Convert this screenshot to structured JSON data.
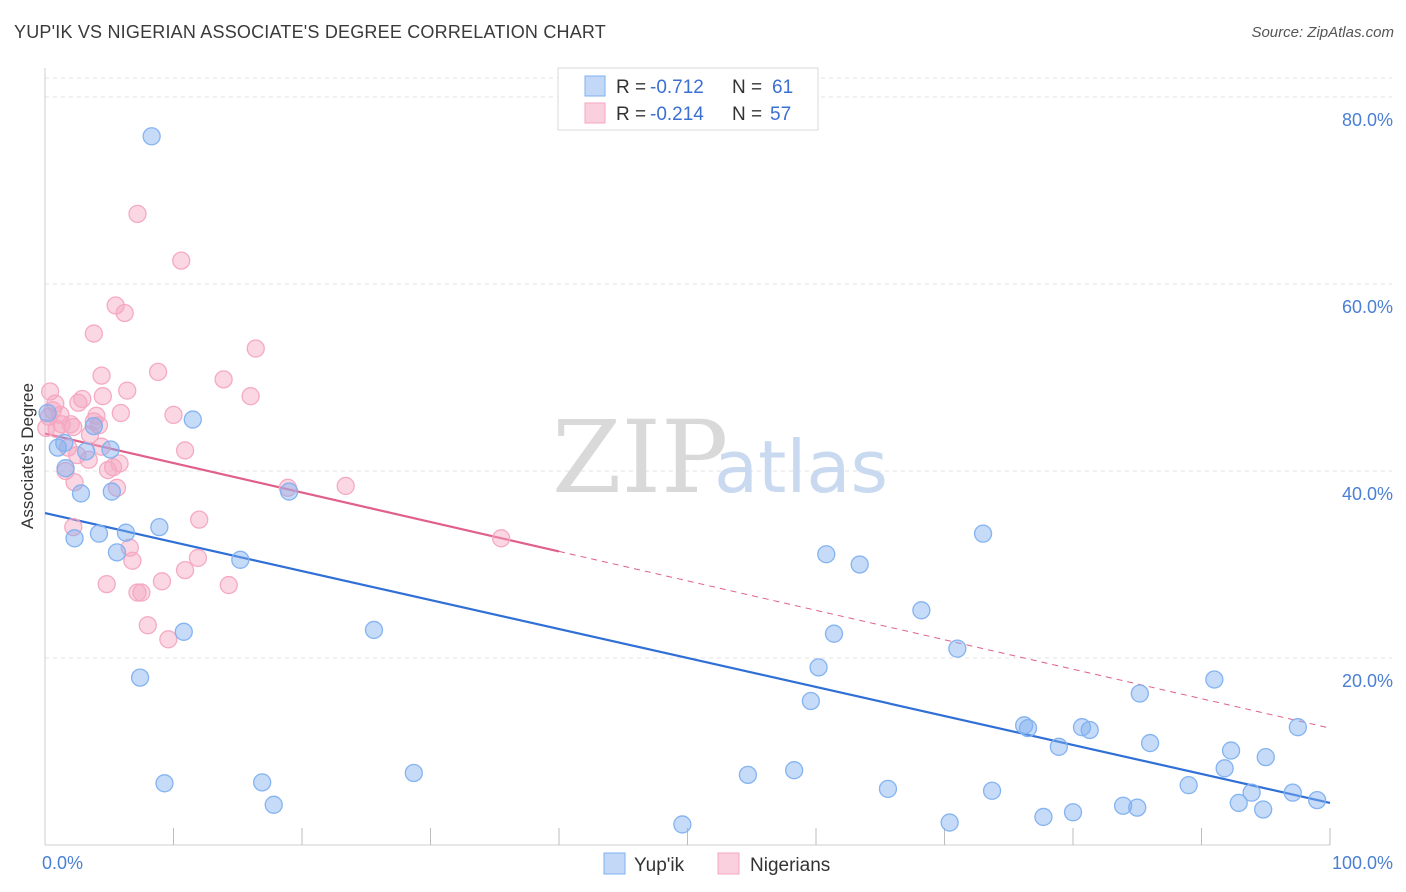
{
  "title": "YUP'IK VS NIGERIAN ASSOCIATE'S DEGREE CORRELATION CHART",
  "source": "Source: ZipAtlas.com",
  "watermark": {
    "zip": "ZIP",
    "atlas": "atlas"
  },
  "legend": {
    "rows": [
      {
        "r_label": "R =",
        "r_value": "-0.712",
        "n_label": "N =",
        "n_value": "61"
      },
      {
        "r_label": "R =",
        "r_value": "-0.214",
        "n_label": "N =",
        "n_value": "57"
      }
    ]
  },
  "bottom_legend": [
    "Yup'ik",
    "Nigerians"
  ],
  "chart_data": {
    "type": "scatter",
    "title": "YUP'IK VS NIGERIAN ASSOCIATE'S DEGREE CORRELATION CHART",
    "xlabel": "",
    "ylabel": "Associate's Degree",
    "xlim": [
      0,
      100
    ],
    "ylim": [
      0,
      82
    ],
    "x_tick_labels": [
      "0.0%",
      "100.0%"
    ],
    "y_ticks": [
      20,
      40,
      60,
      80
    ],
    "y_tick_labels": [
      "20.0%",
      "40.0%",
      "60.0%",
      "80.0%"
    ],
    "grid": true,
    "legend_position": "top-center",
    "series": [
      {
        "name": "Yup'ik",
        "color": "#7fb0f0",
        "line_color": "#2f6fd6",
        "r": -0.712,
        "n": 61,
        "trend": {
          "x0": 0,
          "y0": 35.5,
          "x1": 100,
          "y1": 4.5,
          "dash_from": null
        },
        "points": [
          [
            8.3,
            75.8
          ],
          [
            0.2,
            46.2
          ],
          [
            1.5,
            43.0
          ],
          [
            3.8,
            44.8
          ],
          [
            11.5,
            45.5
          ],
          [
            5.1,
            42.3
          ],
          [
            3.2,
            42.1
          ],
          [
            1.6,
            40.3
          ],
          [
            2.8,
            37.6
          ],
          [
            5.2,
            37.8
          ],
          [
            19.0,
            37.8
          ],
          [
            2.3,
            32.8
          ],
          [
            4.2,
            33.3
          ],
          [
            6.3,
            33.4
          ],
          [
            8.9,
            34.0
          ],
          [
            5.6,
            31.3
          ],
          [
            15.2,
            30.5
          ],
          [
            10.8,
            22.8
          ],
          [
            25.6,
            23.0
          ],
          [
            7.4,
            17.9
          ],
          [
            9.3,
            6.6
          ],
          [
            16.9,
            6.7
          ],
          [
            17.8,
            4.3
          ],
          [
            28.7,
            7.7
          ],
          [
            60.8,
            31.1
          ],
          [
            63.4,
            30.0
          ],
          [
            73.0,
            33.3
          ],
          [
            68.2,
            25.1
          ],
          [
            61.4,
            22.6
          ],
          [
            71.0,
            21.0
          ],
          [
            60.2,
            19.0
          ],
          [
            59.6,
            15.4
          ],
          [
            54.7,
            7.5
          ],
          [
            58.3,
            8.0
          ],
          [
            49.6,
            2.2
          ],
          [
            65.6,
            6.0
          ],
          [
            70.4,
            2.4
          ],
          [
            73.7,
            5.8
          ],
          [
            76.2,
            12.8
          ],
          [
            77.7,
            3.0
          ],
          [
            78.9,
            10.5
          ],
          [
            80.7,
            12.6
          ],
          [
            81.3,
            12.3
          ],
          [
            83.9,
            4.2
          ],
          [
            85.2,
            16.2
          ],
          [
            86.0,
            10.9
          ],
          [
            89.0,
            6.4
          ],
          [
            91.0,
            17.7
          ],
          [
            92.3,
            10.1
          ],
          [
            92.9,
            4.5
          ],
          [
            91.8,
            8.2
          ],
          [
            93.9,
            5.6
          ],
          [
            94.8,
            3.8
          ],
          [
            95.0,
            9.4
          ],
          [
            97.1,
            5.6
          ],
          [
            97.5,
            12.6
          ],
          [
            99.0,
            4.8
          ],
          [
            76.5,
            12.5
          ],
          [
            85.0,
            4.0
          ],
          [
            80.0,
            3.5
          ],
          [
            1.0,
            42.5
          ]
        ]
      },
      {
        "name": "Nigerians",
        "color": "#f4a6c0",
        "line_color": "#e0608a",
        "r": -0.214,
        "n": 57,
        "trend": {
          "x0": 0,
          "y0": 44.0,
          "x1": 100,
          "y1": 12.5,
          "dash_from": 40.0
        },
        "points": [
          [
            7.2,
            67.5
          ],
          [
            10.6,
            62.5
          ],
          [
            5.5,
            57.7
          ],
          [
            6.2,
            56.9
          ],
          [
            3.8,
            54.7
          ],
          [
            16.4,
            53.1
          ],
          [
            4.4,
            50.2
          ],
          [
            8.8,
            50.6
          ],
          [
            13.9,
            49.8
          ],
          [
            0.4,
            48.5
          ],
          [
            6.4,
            48.6
          ],
          [
            4.5,
            48.0
          ],
          [
            16.0,
            48.0
          ],
          [
            2.9,
            47.7
          ],
          [
            2.6,
            47.3
          ],
          [
            0.6,
            46.5
          ],
          [
            1.2,
            46.0
          ],
          [
            10.0,
            46.0
          ],
          [
            5.9,
            46.2
          ],
          [
            0.3,
            45.8
          ],
          [
            1.3,
            45.0
          ],
          [
            0.9,
            44.5
          ],
          [
            0.1,
            44.6
          ],
          [
            2.2,
            44.7
          ],
          [
            3.8,
            45.3
          ],
          [
            4.0,
            45.9
          ],
          [
            4.2,
            44.9
          ],
          [
            3.5,
            43.9
          ],
          [
            1.8,
            42.5
          ],
          [
            2.5,
            41.7
          ],
          [
            4.4,
            42.6
          ],
          [
            10.9,
            42.2
          ],
          [
            3.4,
            41.2
          ],
          [
            5.8,
            40.8
          ],
          [
            5.3,
            40.4
          ],
          [
            4.9,
            40.1
          ],
          [
            1.6,
            40.0
          ],
          [
            2.3,
            38.8
          ],
          [
            5.6,
            38.2
          ],
          [
            18.9,
            38.2
          ],
          [
            23.4,
            38.4
          ],
          [
            12.0,
            34.8
          ],
          [
            2.2,
            34.0
          ],
          [
            35.5,
            32.8
          ],
          [
            6.6,
            31.8
          ],
          [
            6.8,
            30.4
          ],
          [
            11.9,
            30.7
          ],
          [
            10.9,
            29.4
          ],
          [
            9.1,
            28.2
          ],
          [
            4.8,
            27.9
          ],
          [
            14.3,
            27.8
          ],
          [
            7.5,
            27.0
          ],
          [
            7.2,
            27.0
          ],
          [
            8.0,
            23.5
          ],
          [
            9.6,
            22.0
          ],
          [
            2.0,
            45.0
          ],
          [
            0.8,
            47.2
          ]
        ]
      }
    ]
  }
}
